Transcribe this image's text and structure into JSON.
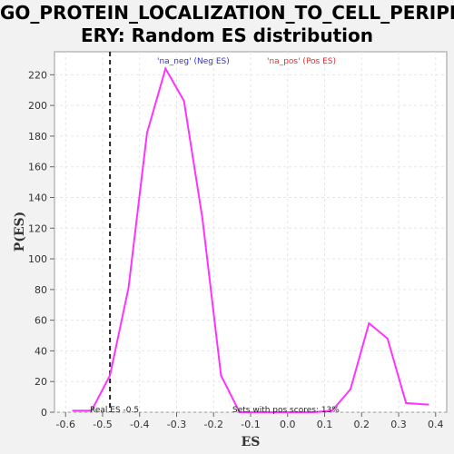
{
  "chart_data": {
    "type": "line",
    "title_line1": "GO_PROTEIN_LOCALIZATION_TO_CELL_PERIPH",
    "title_line2": "ERY: Random ES distribution",
    "xlabel": "ES",
    "ylabel": "P(ES)",
    "xlim": [
      -0.63,
      0.43
    ],
    "ylim": [
      0,
      235
    ],
    "xticks": [
      -0.6,
      -0.5,
      -0.4,
      -0.3,
      -0.2,
      -0.1,
      0.0,
      0.1,
      0.2,
      0.3,
      0.4
    ],
    "xtick_labels": [
      "-0.6",
      "-0.5",
      "-0.4",
      "-0.3",
      "-0.2",
      "-0.1",
      "0.0",
      "0.1",
      "0.2",
      "0.3",
      "0.4"
    ],
    "yticks": [
      0,
      20,
      40,
      60,
      80,
      100,
      120,
      140,
      160,
      180,
      200,
      220
    ],
    "ytick_labels": [
      "0",
      "20",
      "40",
      "60",
      "80",
      "100",
      "120",
      "140",
      "160",
      "180",
      "200",
      "220"
    ],
    "grid": true,
    "legend": [
      {
        "label": "'na_neg' (Neg ES)",
        "color": "#3333cc"
      },
      {
        "label": "'na_pos' (Pos ES)",
        "color": "#e03030"
      }
    ],
    "line_color": "#ff33ff",
    "series": [
      {
        "x": [
          -0.58,
          -0.53,
          -0.48,
          -0.43,
          -0.38,
          -0.33,
          -0.28,
          -0.23,
          -0.18,
          -0.13,
          -0.08,
          -0.03,
          0.02,
          0.07,
          0.12,
          0.17,
          0.22,
          0.27,
          0.32,
          0.38
        ],
        "y": [
          1,
          1,
          24,
          81,
          182,
          224,
          203,
          126,
          24,
          0,
          0,
          0,
          0,
          0,
          1,
          15,
          58,
          48,
          6,
          5
        ]
      }
    ],
    "real_es": -0.48,
    "real_es_label": "Real ES -0.5",
    "annotation": "Sets with pos scores: 13%"
  }
}
